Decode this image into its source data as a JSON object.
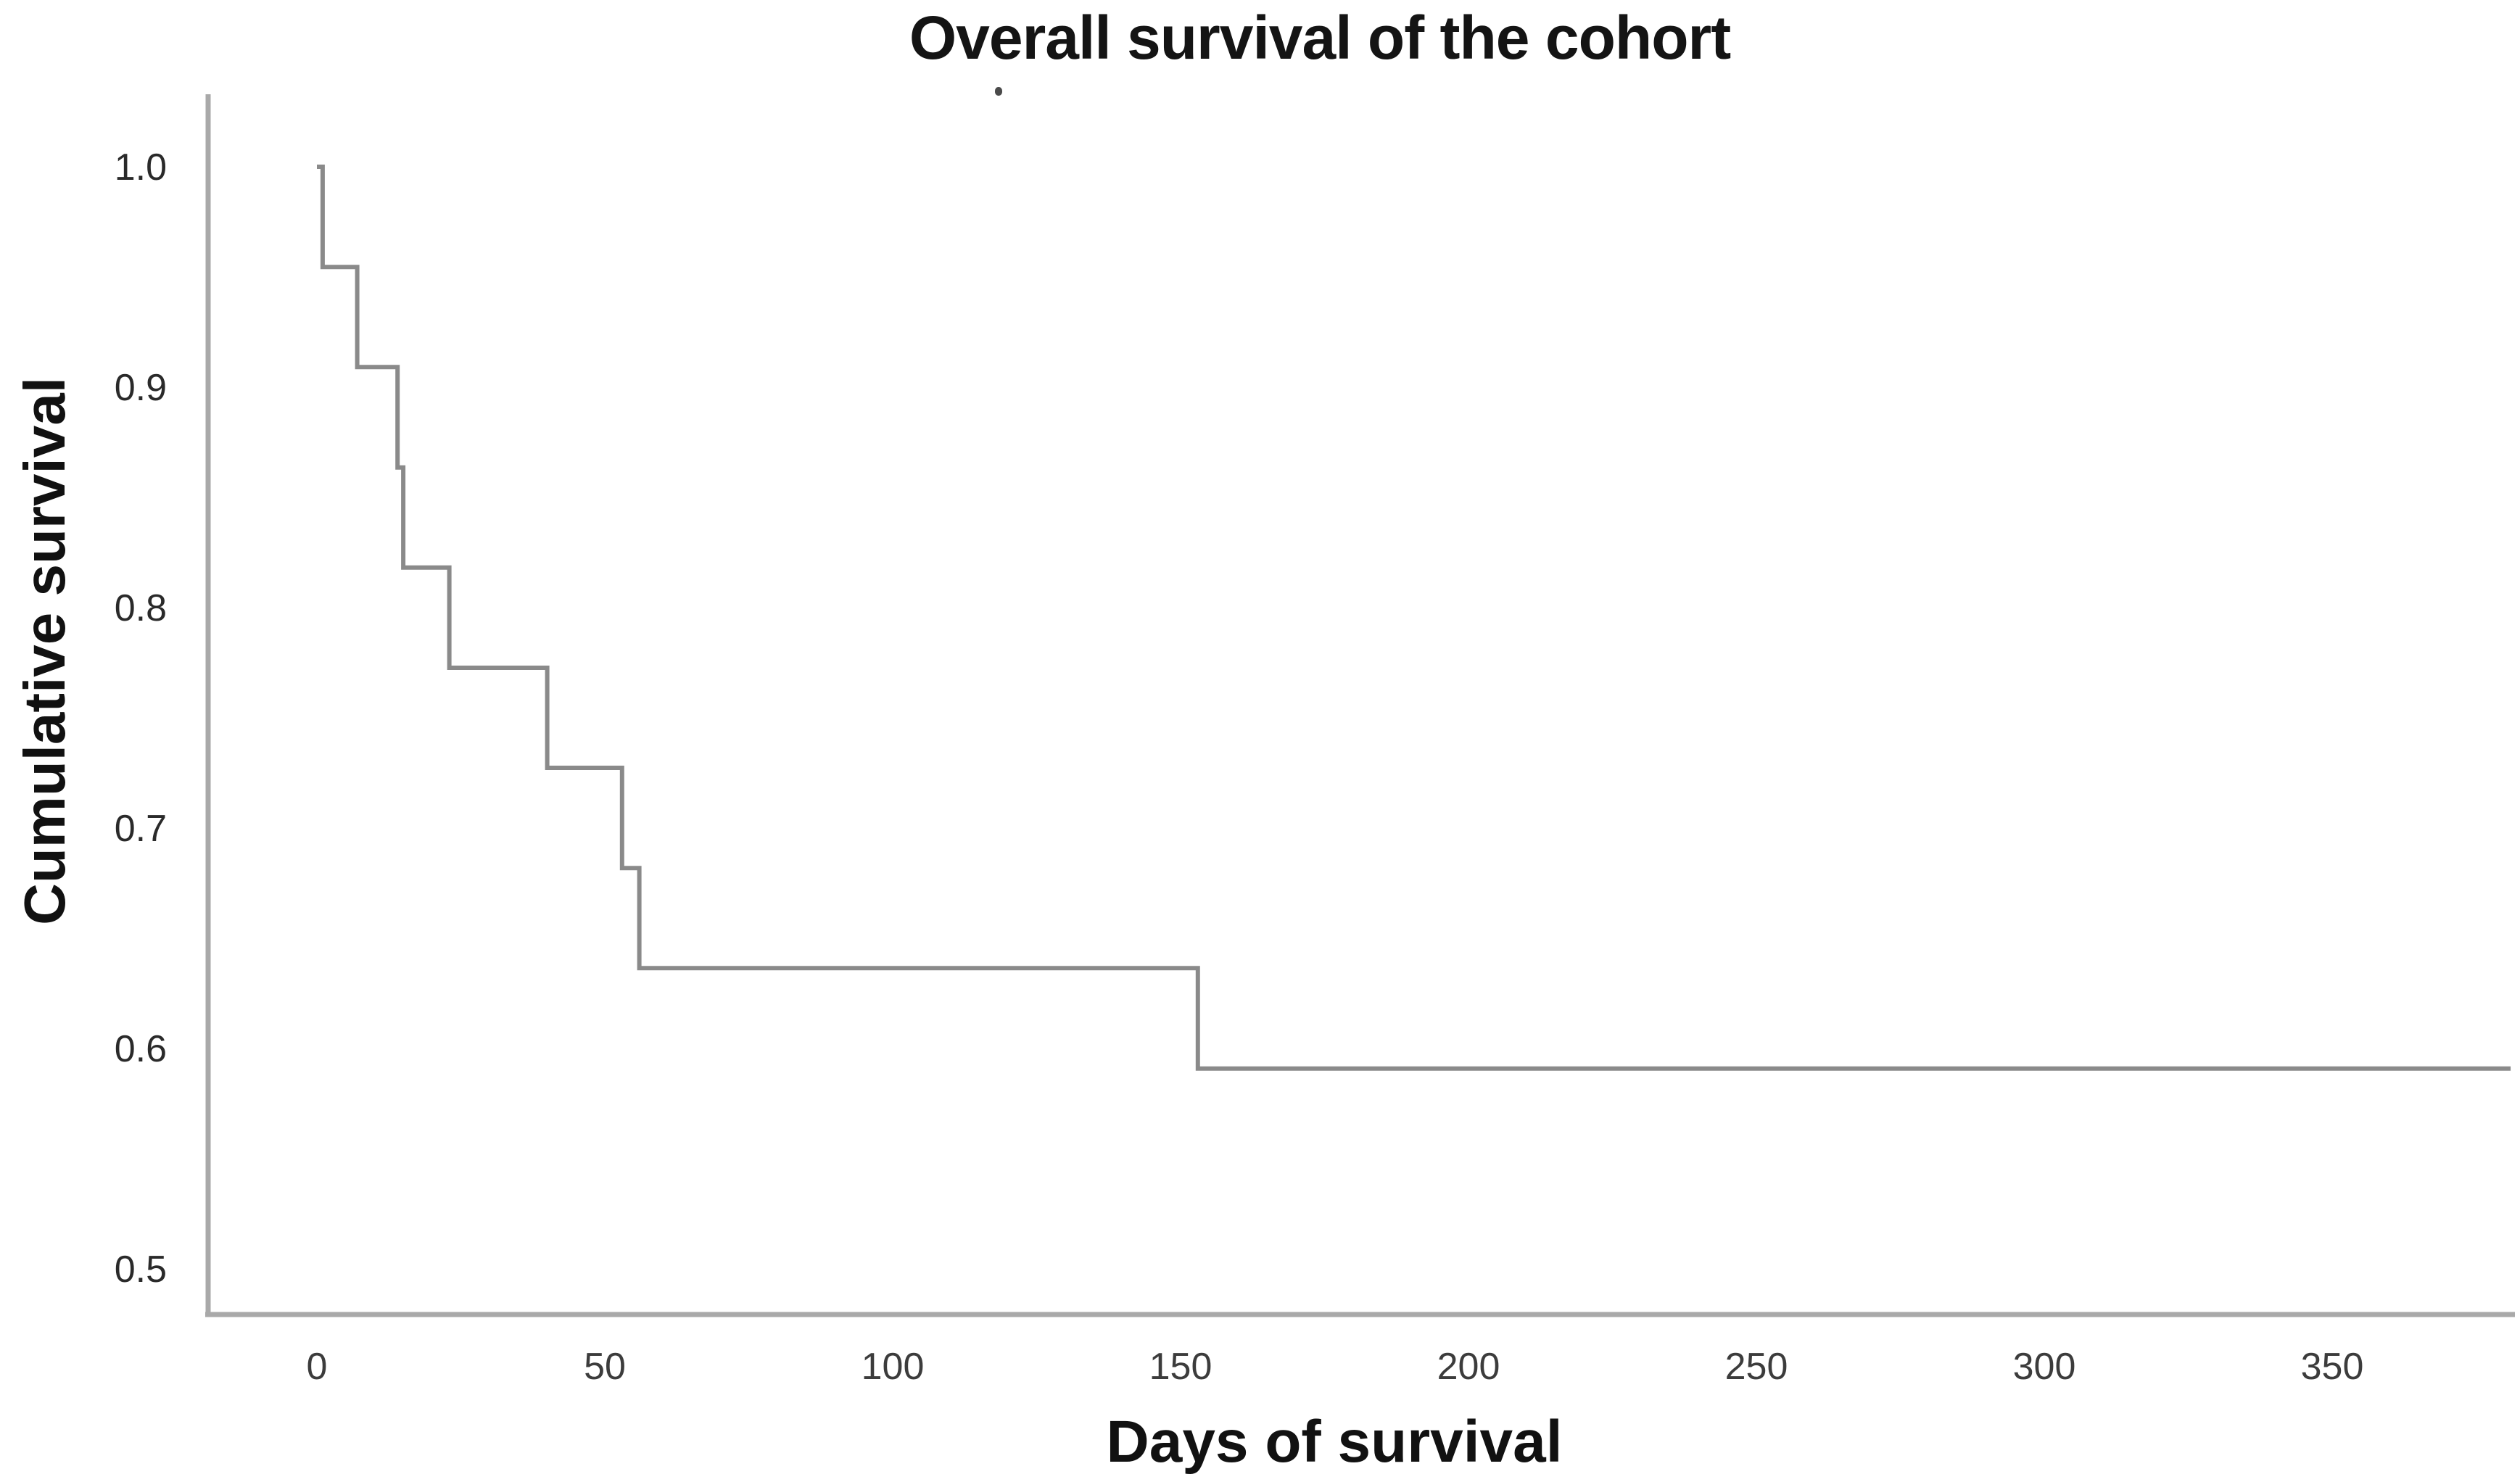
{
  "chart_data": {
    "type": "line",
    "subtype": "kaplan-meier-step",
    "title": "Overall survival of the cohort",
    "xlabel": "Days of survival",
    "ylabel": "Cumulative survival",
    "x_tick_labels": [
      "0",
      "50",
      "100",
      "150",
      "200",
      "250",
      "300",
      "350"
    ],
    "y_tick_labels": [
      "1.0",
      "0.9",
      "0.8",
      "0.7",
      "0.6",
      "0.5"
    ],
    "xlim": [
      -19,
      381
    ],
    "ylim": [
      0.478,
      1.033
    ],
    "grid": false,
    "legend": "none",
    "event_days": [
      1,
      7,
      14,
      15,
      23,
      40,
      53,
      56,
      153
    ],
    "series": [
      {
        "name": "Overall survival",
        "color": "#8a8a8a",
        "points": [
          [
            0,
            1.0
          ],
          [
            1,
            1.0
          ],
          [
            1,
            0.9545
          ],
          [
            7,
            0.9545
          ],
          [
            7,
            0.9091
          ],
          [
            14,
            0.9091
          ],
          [
            14,
            0.8636
          ],
          [
            15,
            0.8636
          ],
          [
            15,
            0.8182
          ],
          [
            23,
            0.8182
          ],
          [
            23,
            0.7727
          ],
          [
            40,
            0.7727
          ],
          [
            40,
            0.7273
          ],
          [
            53,
            0.7273
          ],
          [
            53,
            0.6818
          ],
          [
            56,
            0.6818
          ],
          [
            56,
            0.6364
          ],
          [
            153,
            0.6364
          ],
          [
            153,
            0.5909
          ],
          [
            381,
            0.5909
          ]
        ]
      }
    ],
    "colors": {
      "curve": "#8a8a8a",
      "axis_line": "#a9a9a9",
      "title_text": "#141414",
      "axis_label_text": "#111111",
      "y_tick_text": "#2a2a2a",
      "x_tick_text": "#3c3c3c",
      "background": "#ffffff"
    }
  }
}
